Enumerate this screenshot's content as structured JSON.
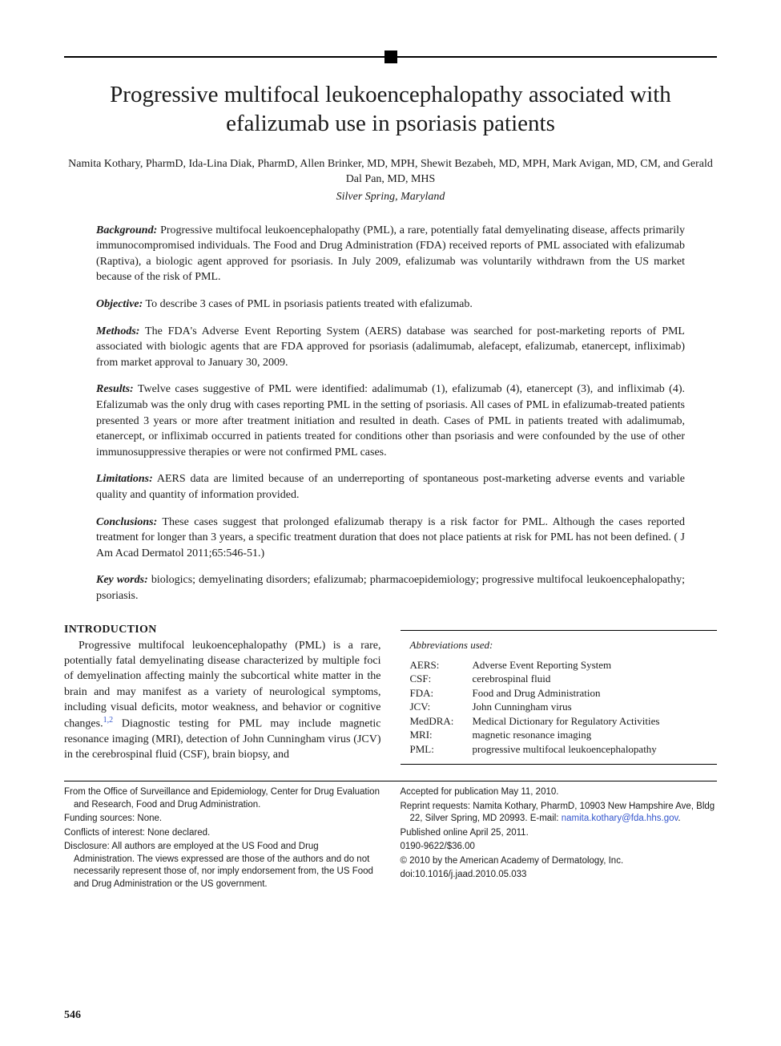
{
  "title": "Progressive multifocal leukoencephalopathy associated with efalizumab use in psoriasis patients",
  "authors": "Namita Kothary, PharmD, Ida-Lina Diak, PharmD, Allen Brinker, MD, MPH, Shewit Bezabeh, MD, MPH, Mark Avigan, MD, CM, and Gerald Dal Pan, MD, MHS",
  "location": "Silver Spring, Maryland",
  "abstract": {
    "background": {
      "label": "Background:",
      "text": " Progressive multifocal leukoencephalopathy (PML), a rare, potentially fatal demyelinating disease, affects primarily immunocompromised individuals. The Food and Drug Administration (FDA) received reports of PML associated with efalizumab (Raptiva), a biologic agent approved for psoriasis. In July 2009, efalizumab was voluntarily withdrawn from the US market because of the risk of PML."
    },
    "objective": {
      "label": "Objective:",
      "text": " To describe 3 cases of PML in psoriasis patients treated with efalizumab."
    },
    "methods": {
      "label": "Methods:",
      "text": " The FDA's Adverse Event Reporting System (AERS) database was searched for post-marketing reports of PML associated with biologic agents that are FDA approved for psoriasis (adalimumab, alefacept, efalizumab, etanercept, infliximab) from market approval to January 30, 2009."
    },
    "results": {
      "label": "Results:",
      "text": " Twelve cases suggestive of PML were identified: adalimumab (1), efalizumab (4), etanercept (3), and infliximab (4). Efalizumab was the only drug with cases reporting PML in the setting of psoriasis. All cases of PML in efalizumab-treated patients presented 3 years or more after treatment initiation and resulted in death. Cases of PML in patients treated with adalimumab, etanercept, or infliximab occurred in patients treated for conditions other than psoriasis and were confounded by the use of other immunosuppressive therapies or were not confirmed PML cases."
    },
    "limitations": {
      "label": "Limitations:",
      "text": " AERS data are limited because of an underreporting of spontaneous post-marketing adverse events and variable quality and quantity of information provided."
    },
    "conclusions": {
      "label": "Conclusions:",
      "text": " These cases suggest that prolonged efalizumab therapy is a risk factor for PML. Although the cases reported treatment for longer than 3 years, a specific treatment duration that does not place patients at risk for PML has not been defined. ( J Am Acad Dermatol 2011;65:546-51.)"
    },
    "keywords": {
      "label": "Key words:",
      "text": " biologics; demyelinating disorders; efalizumab; pharmacoepidemiology; progressive multifocal leukoencephalopathy; psoriasis."
    }
  },
  "intro": {
    "heading": "INTRODUCTION",
    "para_pre": "Progressive multifocal leukoencephalopathy (PML) is a rare, potentially fatal demyelinating disease characterized by multiple foci of demyelination affecting mainly the subcortical white matter in the brain and may manifest as a variety of neurological symptoms, including visual deficits, motor weakness, and behavior or cognitive changes.",
    "cite": "1,2",
    "para_post": " Diagnostic testing for PML may include magnetic resonance imaging (MRI), detection of John Cunningham virus (JCV) in the cerebrospinal fluid (CSF), brain biopsy, and"
  },
  "abbrev": {
    "title": "Abbreviations used:",
    "items": [
      {
        "k": "AERS:",
        "v": "Adverse Event Reporting System"
      },
      {
        "k": "CSF:",
        "v": "cerebrospinal fluid"
      },
      {
        "k": "FDA:",
        "v": "Food and Drug Administration"
      },
      {
        "k": "JCV:",
        "v": "John Cunningham virus"
      },
      {
        "k": "MedDRA:",
        "v": "Medical Dictionary for Regulatory Activities"
      },
      {
        "k": "MRI:",
        "v": "magnetic resonance imaging"
      },
      {
        "k": "PML:",
        "v": "progressive multifocal leukoencephalopathy"
      }
    ]
  },
  "footer": {
    "left": [
      "From the Office of Surveillance and Epidemiology, Center for Drug Evaluation and Research, Food and Drug Administration.",
      "Funding sources: None.",
      "Conflicts of interest: None declared.",
      "Disclosure: All authors are employed at the US Food and Drug Administration. The views expressed are those of the authors and do not necessarily represent those of, nor imply endorsement from, the US Food and Drug Administration or the US government."
    ],
    "right": {
      "accepted": "Accepted for publication May 11, 2010.",
      "reprint_pre": "Reprint requests: Namita Kothary, PharmD, 10903 New Hampshire Ave, Bldg 22, Silver Spring, MD 20993. E-mail: ",
      "email": "namita.kothary@fda.hhs.gov",
      "reprint_post": ".",
      "published": "Published online April 25, 2011.",
      "issn": "0190-9622/$36.00",
      "copyright": "© 2010 by the American Academy of Dermatology, Inc.",
      "doi": "doi:10.1016/j.jaad.2010.05.033"
    }
  },
  "page_number": "546"
}
